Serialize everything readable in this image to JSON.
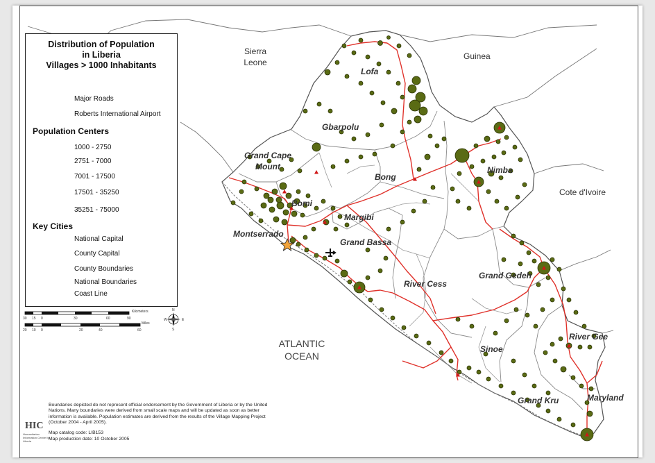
{
  "legend": {
    "title_lines": [
      "Distribution of Population",
      "in Liberia",
      "Villages > 1000 Inhabitants"
    ],
    "roads_label": "Major Roads",
    "airport_label": "Roberts International Airport",
    "population_heading": "Population Centers",
    "population_classes": [
      "1000 - 2750",
      "2751 - 7000",
      "7001 - 17500",
      "17501 - 35250",
      "35251 - 75000"
    ],
    "key_cities_heading": "Key Cities",
    "national_capital_label": "National Capital",
    "county_capital_label": "County Capital",
    "county_boundaries_label": "County Boundaries",
    "national_boundaries_label": "National Boundaries",
    "coast_line_label": "Coast Line"
  },
  "scale": {
    "km_label": "Kilometers",
    "km_ticks": [
      "30",
      "15",
      "0",
      "30",
      "60",
      "90"
    ],
    "mi_label": "Miles",
    "mi_ticks": [
      "20",
      "10",
      "0",
      "20",
      "40",
      "60"
    ]
  },
  "countries": {
    "sierra_leone": "Sierra Leone",
    "guinea": "Guinea",
    "cote_divoire": "Cote d'Ivoire"
  },
  "counties": {
    "lofa": "Lofa",
    "gbarpolu": "Gbarpolu",
    "grand_cape_mount": "Grand Cape Mount",
    "bomi": "Bomi",
    "bong": "Bong",
    "nimba": "Nimba",
    "montserrado": "Montserrado",
    "margibi": "Margibi",
    "grand_bassa": "Grand Bassa",
    "river_cess": "River Cess",
    "grand_gedeh": "Grand Gedeh",
    "sinoe": "Sinoe",
    "river_gee": "River Gee",
    "grand_kru": "Grand Kru",
    "maryland": "Maryland"
  },
  "ocean": "ATLANTIC OCEAN",
  "footnote": "Boundaries depicted do not represent official endorsement by the Government of Liberia or by the United Nations. Many boundaries were derived from small scale maps and will be updated as soon as better information is available. Population estimates are derived from the results of the Village Mapping Project (October 2004 - April 2005).",
  "catalog_code": "Map catalog code: LIB153",
  "production_date": "Map production date: 10 October 2005",
  "logo": "HIC",
  "logo_sub": "Humanitarian Information Centre for Liberia",
  "compass": {
    "north": "N",
    "south": "S",
    "east": "E",
    "west": "W"
  },
  "colors": {
    "roads": "#e0322b",
    "village_fill": "#5a6b14",
    "village_stroke": "#2b3306",
    "national_capital": "#f2a33a",
    "county_capital": "#d01818",
    "boundary": "#777777"
  }
}
